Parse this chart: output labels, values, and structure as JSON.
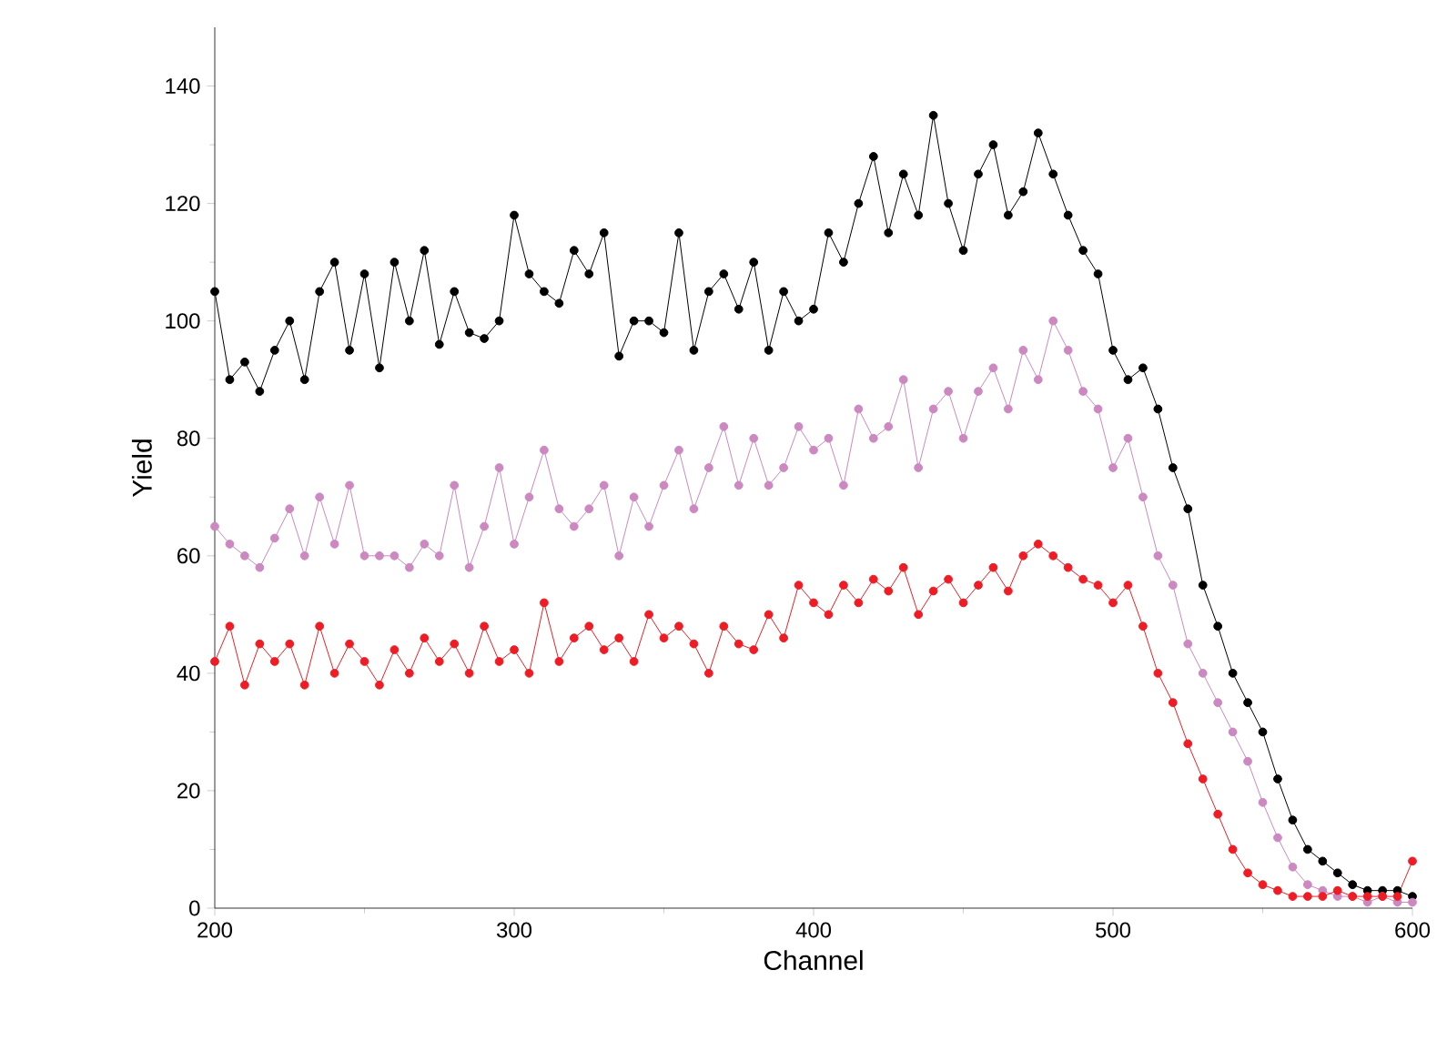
{
  "chart_data": {
    "type": "line",
    "xlabel": "Channel",
    "ylabel": "Yield",
    "marker": "circle",
    "line_style": "solid",
    "x": [
      200,
      205,
      210,
      215,
      220,
      225,
      230,
      235,
      240,
      245,
      250,
      255,
      260,
      265,
      270,
      275,
      280,
      285,
      290,
      295,
      300,
      305,
      310,
      315,
      320,
      325,
      330,
      335,
      340,
      345,
      350,
      355,
      360,
      365,
      370,
      375,
      380,
      385,
      390,
      395,
      400,
      405,
      410,
      415,
      420,
      425,
      430,
      435,
      440,
      445,
      450,
      455,
      460,
      465,
      470,
      475,
      480,
      485,
      490,
      495,
      500,
      505,
      510,
      515,
      520,
      525,
      530,
      535,
      540,
      545,
      550,
      555,
      560,
      565,
      570,
      575,
      580,
      585,
      590,
      595,
      600
    ],
    "series": [
      {
        "color": "#000000",
        "values": [
          105,
          90,
          93,
          88,
          95,
          100,
          90,
          105,
          110,
          95,
          108,
          92,
          110,
          100,
          112,
          96,
          105,
          98,
          97,
          100,
          118,
          108,
          105,
          103,
          112,
          108,
          115,
          94,
          100,
          100,
          98,
          115,
          95,
          105,
          108,
          102,
          110,
          95,
          105,
          100,
          102,
          115,
          110,
          120,
          128,
          115,
          125,
          118,
          135,
          120,
          112,
          125,
          130,
          118,
          122,
          132,
          125,
          118,
          112,
          108,
          95,
          90,
          92,
          85,
          75,
          68,
          55,
          48,
          40,
          35,
          30,
          22,
          15,
          10,
          8,
          6,
          4,
          3,
          3,
          3,
          2
        ]
      },
      {
        "color": "#cc88c0",
        "values": [
          65,
          62,
          60,
          58,
          63,
          68,
          60,
          70,
          62,
          72,
          60,
          60,
          60,
          58,
          62,
          60,
          72,
          58,
          65,
          75,
          62,
          70,
          78,
          68,
          65,
          68,
          72,
          60,
          70,
          65,
          72,
          78,
          68,
          75,
          82,
          72,
          80,
          72,
          75,
          82,
          78,
          80,
          72,
          85,
          80,
          82,
          90,
          75,
          85,
          88,
          80,
          88,
          92,
          85,
          95,
          90,
          100,
          95,
          88,
          85,
          75,
          80,
          70,
          60,
          55,
          45,
          40,
          35,
          30,
          25,
          18,
          12,
          7,
          4,
          3,
          2,
          2,
          1,
          2,
          1,
          1
        ]
      },
      {
        "color": "#ee1c24",
        "values": [
          42,
          48,
          38,
          45,
          42,
          45,
          38,
          48,
          40,
          45,
          42,
          38,
          44,
          40,
          46,
          42,
          45,
          40,
          48,
          42,
          44,
          40,
          52,
          42,
          46,
          48,
          44,
          46,
          42,
          50,
          46,
          48,
          45,
          40,
          48,
          45,
          44,
          50,
          46,
          55,
          52,
          50,
          55,
          52,
          56,
          54,
          58,
          50,
          54,
          56,
          52,
          55,
          58,
          54,
          60,
          62,
          60,
          58,
          56,
          55,
          52,
          55,
          48,
          40,
          35,
          28,
          22,
          16,
          10,
          6,
          4,
          3,
          2,
          2,
          2,
          3,
          2,
          2,
          2,
          2,
          8
        ]
      }
    ],
    "xlim": [
      200,
      600
    ],
    "ylim": [
      0,
      150
    ],
    "xticks": [
      200,
      300,
      400,
      500,
      600
    ],
    "yticks": [
      0,
      20,
      40,
      60,
      80,
      100,
      120,
      140
    ]
  }
}
